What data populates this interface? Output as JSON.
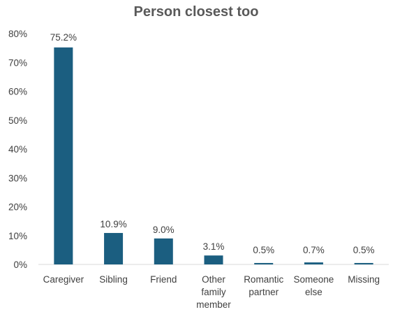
{
  "chart_data": {
    "type": "bar",
    "title": "Person closest too",
    "categories": [
      [
        "Caregiver"
      ],
      [
        "Sibling"
      ],
      [
        "Friend"
      ],
      [
        "Other",
        "family",
        "member"
      ],
      [
        "Romantic",
        "partner"
      ],
      [
        "Someone",
        "else"
      ],
      [
        "Missing"
      ]
    ],
    "values": [
      75.2,
      10.9,
      9.0,
      3.1,
      0.5,
      0.7,
      0.5
    ],
    "data_labels": [
      "75.2%",
      "10.9%",
      "9.0%",
      "3.1%",
      "0.5%",
      "0.7%",
      "0.5%"
    ],
    "ylim": [
      0,
      80
    ],
    "yticks": [
      "0%",
      "10%",
      "20%",
      "30%",
      "40%",
      "50%",
      "60%",
      "70%",
      "80%"
    ],
    "grid": false,
    "legend": "none",
    "bar_color": "#1B5E80",
    "axis_color": "#D9D9D9"
  }
}
